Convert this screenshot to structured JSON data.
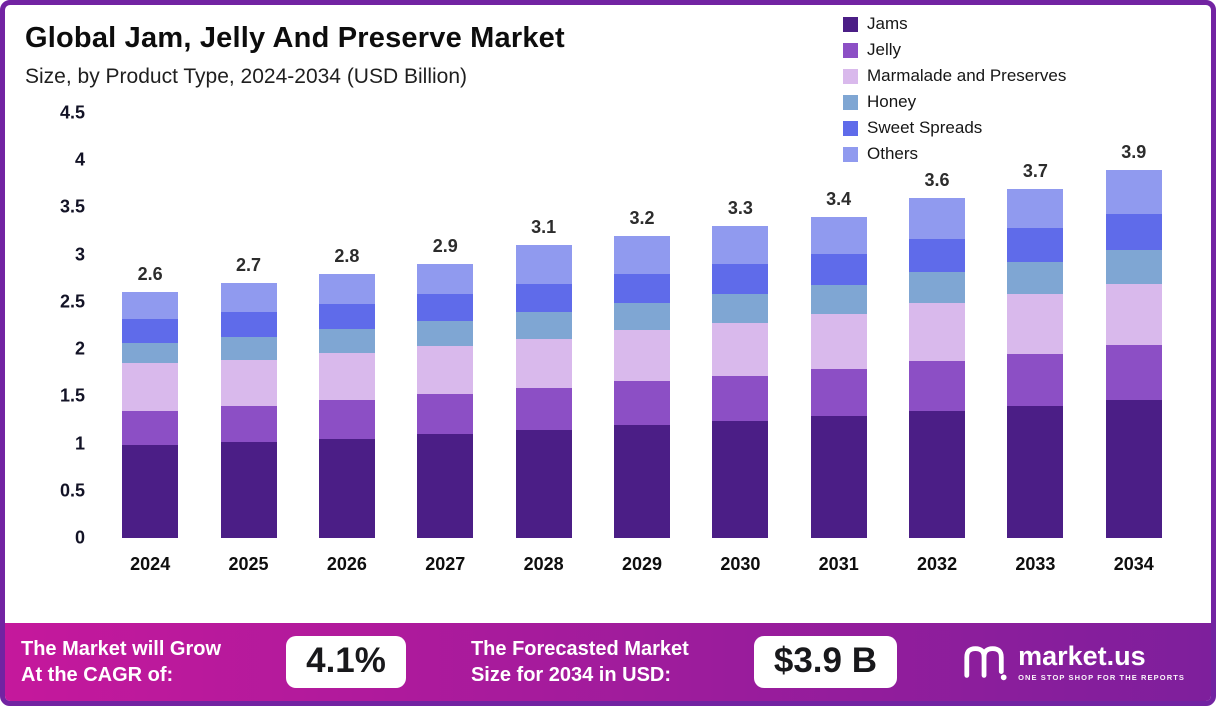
{
  "page": {
    "border_color": "#7223a2",
    "background": "#ffffff"
  },
  "header": {
    "title": "Global Jam, Jelly And Preserve Market",
    "subtitle": "Size, by Product Type, 2024-2034 (USD Billion)"
  },
  "chart_data": {
    "type": "bar",
    "stacked": true,
    "title": "Global Jam, Jelly And Preserve Market Size, by Product Type, 2024-2034 (USD Billion)",
    "xlabel": "",
    "ylabel": "",
    "ylim": [
      0,
      4.5
    ],
    "yticks": [
      0,
      0.5,
      1,
      1.5,
      2,
      2.5,
      3,
      3.5,
      4,
      4.5
    ],
    "grid": false,
    "legend_position": "top-right",
    "categories": [
      "2024",
      "2025",
      "2026",
      "2027",
      "2028",
      "2029",
      "2030",
      "2031",
      "2032",
      "2033",
      "2034"
    ],
    "totals": [
      2.6,
      2.7,
      2.8,
      2.9,
      3.1,
      3.2,
      3.3,
      3.4,
      3.6,
      3.7,
      3.9
    ],
    "series": [
      {
        "name": "Jams",
        "color": "#4b1e86",
        "values": [
          0.98,
          1.02,
          1.05,
          1.1,
          1.14,
          1.2,
          1.24,
          1.29,
          1.34,
          1.4,
          1.46
        ]
      },
      {
        "name": "Jelly",
        "color": "#8c4fc5",
        "values": [
          0.37,
          0.38,
          0.41,
          0.43,
          0.45,
          0.46,
          0.48,
          0.5,
          0.53,
          0.55,
          0.58
        ]
      },
      {
        "name": "Marmalade and Preserves",
        "color": "#d9b9ec",
        "values": [
          0.5,
          0.48,
          0.5,
          0.5,
          0.52,
          0.54,
          0.56,
          0.58,
          0.62,
          0.63,
          0.65
        ]
      },
      {
        "name": "Honey",
        "color": "#7fa6d3",
        "values": [
          0.22,
          0.25,
          0.25,
          0.27,
          0.28,
          0.29,
          0.3,
          0.31,
          0.33,
          0.34,
          0.36
        ]
      },
      {
        "name": "Sweet Spreads",
        "color": "#5f6bea",
        "values": [
          0.25,
          0.26,
          0.27,
          0.28,
          0.3,
          0.31,
          0.32,
          0.33,
          0.35,
          0.36,
          0.38
        ]
      },
      {
        "name": "Others",
        "color": "#909aef",
        "values": [
          0.28,
          0.31,
          0.32,
          0.32,
          0.41,
          0.4,
          0.4,
          0.39,
          0.43,
          0.42,
          0.47
        ]
      }
    ]
  },
  "footer": {
    "gradient": [
      "#c5189c",
      "#7e1f9c"
    ],
    "cagr_text_line1": "The Market will Grow",
    "cagr_text_line2": "At the CAGR of:",
    "cagr_value": "4.1%",
    "forecast_text_line1": "The Forecasted Market",
    "forecast_text_line2": "Size for 2034 in USD:",
    "forecast_value": "$3.9 B",
    "brand": "market.us",
    "brand_tagline": "ONE STOP SHOP FOR THE REPORTS"
  }
}
